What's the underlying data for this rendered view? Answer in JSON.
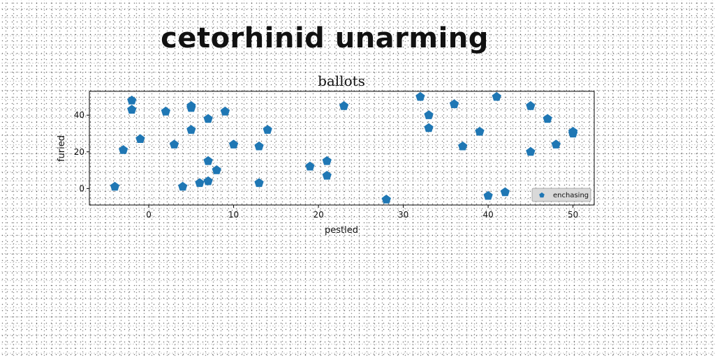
{
  "figure": {
    "title": "cetorhinid unarming"
  },
  "chart_data": {
    "type": "scatter",
    "title": "ballots",
    "xlabel": "pestled",
    "ylabel": "furied",
    "xlim": [
      -7,
      52.5
    ],
    "ylim": [
      -9,
      53
    ],
    "xticks": [
      0,
      10,
      20,
      30,
      40,
      50
    ],
    "yticks": [
      0,
      20,
      40
    ],
    "grid": false,
    "legend": {
      "position": "lower-right",
      "entries": [
        "enchasing"
      ]
    },
    "marker": "pentagon",
    "colors": {
      "series": "#1f77b4",
      "axes": "#000000",
      "legend_bg": "#d9d9d9"
    },
    "series": [
      {
        "name": "enchasing",
        "points": [
          [
            -4,
            1
          ],
          [
            -3,
            21
          ],
          [
            -2,
            48
          ],
          [
            -2,
            43
          ],
          [
            -1,
            27
          ],
          [
            2,
            42
          ],
          [
            3,
            24
          ],
          [
            4,
            1
          ],
          [
            5,
            45
          ],
          [
            5,
            44
          ],
          [
            5,
            32
          ],
          [
            6,
            3
          ],
          [
            7,
            4
          ],
          [
            7,
            15
          ],
          [
            7,
            38
          ],
          [
            8,
            10
          ],
          [
            9,
            42
          ],
          [
            10,
            24
          ],
          [
            13,
            23
          ],
          [
            13,
            3
          ],
          [
            14,
            32
          ],
          [
            19,
            12
          ],
          [
            21,
            15
          ],
          [
            21,
            7
          ],
          [
            23,
            45
          ],
          [
            28,
            -6
          ],
          [
            32,
            50
          ],
          [
            33,
            40
          ],
          [
            33,
            33
          ],
          [
            36,
            46
          ],
          [
            37,
            23
          ],
          [
            39,
            31
          ],
          [
            40,
            -4
          ],
          [
            41,
            50
          ],
          [
            42,
            -2
          ],
          [
            45,
            45
          ],
          [
            45,
            20
          ],
          [
            47,
            38
          ],
          [
            48,
            24
          ],
          [
            50,
            31
          ],
          [
            50,
            30
          ]
        ]
      }
    ]
  }
}
